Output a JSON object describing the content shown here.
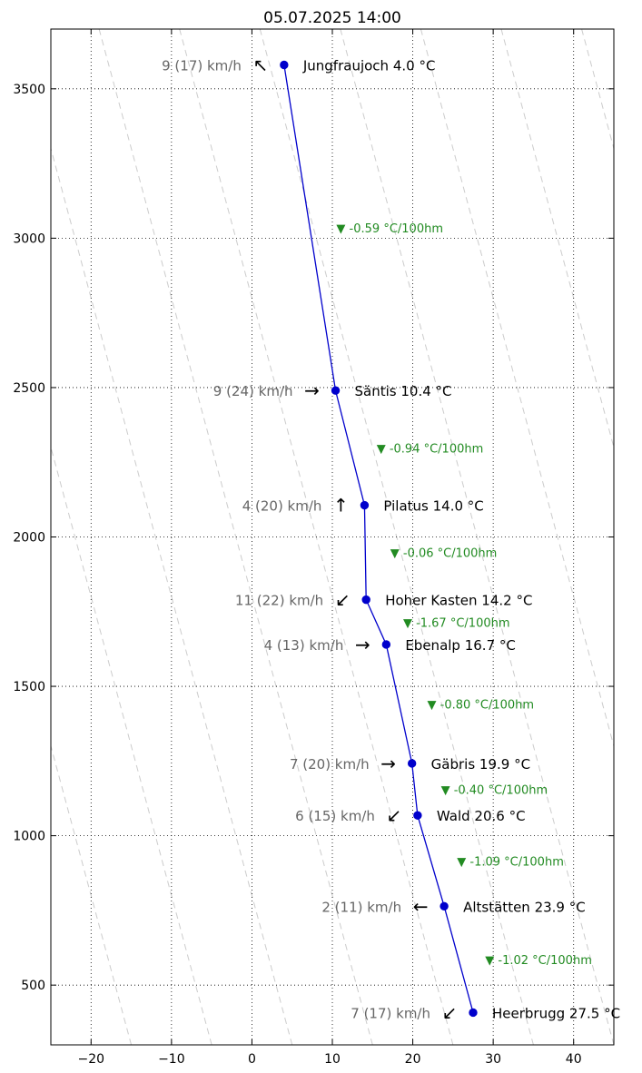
{
  "chart_data": {
    "type": "line",
    "title": "05.07.2025 14:00",
    "xlabel": "",
    "ylabel": "",
    "xlim": [
      -25,
      45
    ],
    "ylim": [
      300,
      3700
    ],
    "x_ticks": [
      -20,
      -10,
      0,
      10,
      20,
      30,
      40
    ],
    "x_tick_labels": [
      "−20",
      "−10",
      "0",
      "10",
      "20",
      "30",
      "40"
    ],
    "y_ticks": [
      500,
      1000,
      1500,
      2000,
      2500,
      3000,
      3500
    ],
    "y_tick_labels": [
      "500",
      "1000",
      "1500",
      "2000",
      "2500",
      "3000",
      "3500"
    ],
    "grid": true,
    "series_color": "#0000cc",
    "lapse_color": "#228B22",
    "dry_adiabat_slope_c_per_100m": -1.0,
    "dry_adiabat_offsets": [
      -12,
      -2,
      8,
      18,
      28,
      38,
      48,
      58,
      68,
      78,
      88
    ],
    "stations": [
      {
        "name_label": "Jungfraujoch 4.0 °C",
        "temp": 4.0,
        "alt": 3580,
        "wind_label": "9 (17) km/h",
        "wind_arrow": "↖"
      },
      {
        "name_label": "Säntis 10.4 °C",
        "temp": 10.4,
        "alt": 2490,
        "wind_label": "9 (24) km/h",
        "wind_arrow": "→"
      },
      {
        "name_label": "Pilatus 14.0 °C",
        "temp": 14.0,
        "alt": 2106,
        "wind_label": "4 (20) km/h",
        "wind_arrow": "↑"
      },
      {
        "name_label": "Hoher Kasten 14.2 °C",
        "temp": 14.2,
        "alt": 1790,
        "wind_label": "11 (22) km/h",
        "wind_arrow": "↙"
      },
      {
        "name_label": "Ebenalp 16.7 °C",
        "temp": 16.7,
        "alt": 1640,
        "wind_label": "4 (13) km/h",
        "wind_arrow": "→"
      },
      {
        "name_label": "Gäbris 19.9 °C",
        "temp": 19.9,
        "alt": 1242,
        "wind_label": "7 (20) km/h",
        "wind_arrow": "→"
      },
      {
        "name_label": "Wald 20.6 °C",
        "temp": 20.6,
        "alt": 1068,
        "wind_label": "6 (15) km/h",
        "wind_arrow": "↙"
      },
      {
        "name_label": "Altstätten 23.9 °C",
        "temp": 23.9,
        "alt": 764,
        "wind_label": "2 (11) km/h",
        "wind_arrow": "←"
      },
      {
        "name_label": "Heerbrugg 27.5 °C",
        "temp": 27.5,
        "alt": 408,
        "wind_label": "7 (17) km/h",
        "wind_arrow": "↙"
      }
    ],
    "lapse_rates": [
      {
        "label": "▼ -0.59 °C/100hm",
        "x": 10.5,
        "alt": 3035
      },
      {
        "label": "▼ -0.94 °C/100hm",
        "x": 15.5,
        "alt": 2298
      },
      {
        "label": "▼ -0.06 °C/100hm",
        "x": 17.2,
        "alt": 1948
      },
      {
        "label": "▼ -1.67 °C/100hm",
        "x": 18.8,
        "alt": 1715
      },
      {
        "label": "▼ -0.80 °C/100hm",
        "x": 21.8,
        "alt": 1441
      },
      {
        "label": "▼ -0.40 °C/100hm",
        "x": 23.5,
        "alt": 1155
      },
      {
        "label": "▼ -1.09 °C/100hm",
        "x": 25.5,
        "alt": 916
      },
      {
        "label": "▼ -1.02 °C/100hm",
        "x": 29.0,
        "alt": 586
      }
    ]
  }
}
